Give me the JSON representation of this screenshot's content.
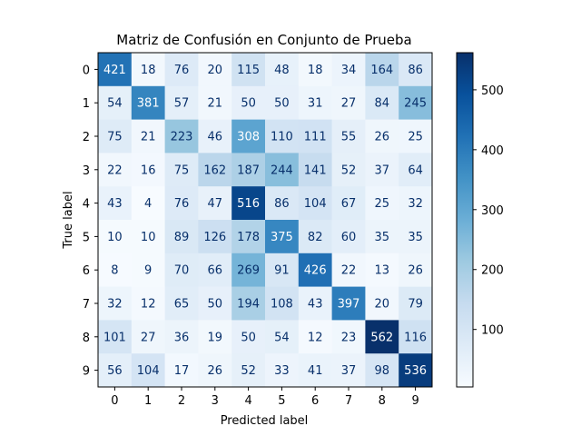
{
  "chart_data": {
    "type": "heatmap",
    "title": "Matriz de Confusión en Conjunto de Prueba",
    "xlabel": "Predicted label",
    "ylabel": "True label",
    "x_categories": [
      "0",
      "1",
      "2",
      "3",
      "4",
      "5",
      "6",
      "7",
      "8",
      "9"
    ],
    "y_categories": [
      "0",
      "1",
      "2",
      "3",
      "4",
      "5",
      "6",
      "7",
      "8",
      "9"
    ],
    "values": [
      [
        421,
        18,
        76,
        20,
        115,
        48,
        18,
        34,
        164,
        86
      ],
      [
        54,
        381,
        57,
        21,
        50,
        50,
        31,
        27,
        84,
        245
      ],
      [
        75,
        21,
        223,
        46,
        308,
        110,
        111,
        55,
        26,
        25
      ],
      [
        22,
        16,
        75,
        162,
        187,
        244,
        141,
        52,
        37,
        64
      ],
      [
        43,
        4,
        76,
        47,
        516,
        86,
        104,
        67,
        25,
        32
      ],
      [
        10,
        10,
        89,
        126,
        178,
        375,
        82,
        60,
        35,
        35
      ],
      [
        8,
        9,
        70,
        66,
        269,
        91,
        426,
        22,
        13,
        26
      ],
      [
        32,
        12,
        65,
        50,
        194,
        108,
        43,
        397,
        20,
        79
      ],
      [
        101,
        27,
        36,
        19,
        50,
        54,
        12,
        23,
        562,
        116
      ],
      [
        56,
        104,
        17,
        26,
        52,
        33,
        41,
        37,
        98,
        536
      ]
    ],
    "colormap": "Blues",
    "value_range": [
      4,
      562
    ],
    "colorbar_ticks": [
      100,
      200,
      300,
      400,
      500
    ]
  }
}
